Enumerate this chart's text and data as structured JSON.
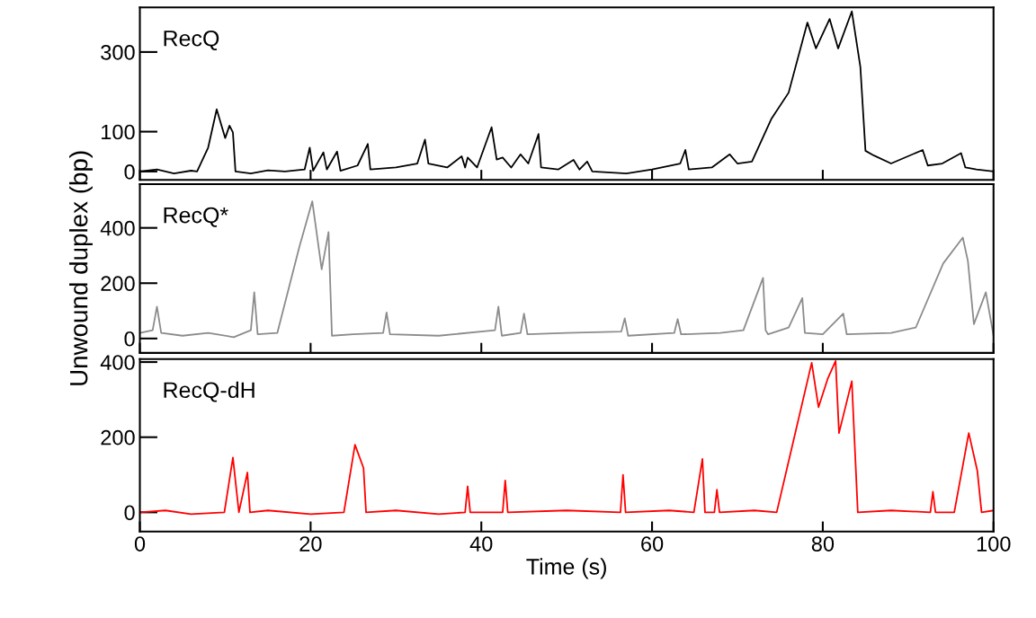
{
  "chart_data": [
    {
      "type": "line",
      "ylabel": null,
      "xlim": [
        0,
        100
      ],
      "xticks": [
        0,
        20,
        40,
        60,
        80,
        100
      ],
      "ylim": [
        -21,
        412
      ],
      "yticks": [
        0,
        100,
        300
      ],
      "tick_labels": "y",
      "legend": "top left",
      "series": [
        {
          "name": "RecQ",
          "color": "#000000",
          "x": [
            0,
            2,
            4,
            6,
            6.7,
            8,
            9.0,
            9.5,
            10.0,
            10.5,
            10.9,
            11.2,
            13,
            15,
            17,
            19.3,
            19.9,
            20.3,
            21.5,
            21.9,
            23.1,
            23.5,
            25.5,
            26.7,
            27.0,
            30,
            32.5,
            33.4,
            33.8,
            36,
            37.7,
            38.1,
            38.4,
            39.5,
            41.2,
            41.8,
            42.5,
            43.5,
            44.6,
            45.5,
            46.7,
            47.0,
            49,
            50.8,
            51.5,
            52.4,
            53,
            57,
            60,
            63.3,
            63.9,
            64.3,
            67,
            69.1,
            70,
            71.7,
            74,
            76,
            78.2,
            79.2,
            80.8,
            81.8,
            83.4,
            84.4,
            85,
            86,
            88,
            91.7,
            92.3,
            94,
            96.2,
            96.7,
            98,
            100
          ],
          "values": [
            0,
            5,
            -5,
            2,
            0,
            60,
            156,
            120,
            84,
            115,
            98,
            0,
            -5,
            3,
            0,
            5,
            60,
            2,
            48,
            5,
            50,
            2,
            15,
            69,
            5,
            10,
            20,
            80,
            20,
            10,
            38,
            10,
            35,
            10,
            111,
            30,
            35,
            10,
            43,
            20,
            94,
            10,
            5,
            29,
            5,
            25,
            0,
            -5,
            5,
            20,
            54,
            5,
            10,
            43,
            20,
            25,
            133,
            198,
            374,
            309,
            383,
            309,
            402,
            263,
            52,
            40,
            20,
            54,
            15,
            20,
            46,
            10,
            5,
            0
          ]
        }
      ]
    },
    {
      "type": "line",
      "ylabel": "Unwound duplex (bp)",
      "xlim": [
        0,
        100
      ],
      "xticks": [
        0,
        20,
        40,
        60,
        80,
        100
      ],
      "ylim": [
        -52,
        558
      ],
      "yticks": [
        0,
        200,
        400
      ],
      "tick_labels": "y",
      "legend": "top left",
      "series": [
        {
          "name": "RecQ*",
          "color": "#8c8c8c",
          "x": [
            0,
            1.5,
            2,
            2.5,
            5,
            8,
            11,
            13.0,
            13.4,
            13.8,
            16.1,
            18.7,
            20.2,
            21.3,
            22.1,
            22.5,
            25,
            28.5,
            28.9,
            29.3,
            35,
            41.6,
            42,
            42.4,
            44.6,
            45,
            45.4,
            50,
            56.4,
            56.8,
            57.2,
            62.6,
            63,
            63.4,
            68,
            70.7,
            73.0,
            73.3,
            73.6,
            76,
            77.6,
            77.9,
            80,
            82.4,
            82.8,
            88,
            90.9,
            94.1,
            96.4,
            97,
            97.7,
            99.1,
            100
          ],
          "values": [
            20,
            30,
            115,
            20,
            10,
            20,
            5,
            30,
            167,
            15,
            20,
            333,
            496,
            250,
            385,
            10,
            15,
            20,
            94,
            15,
            10,
            30,
            115,
            10,
            20,
            90,
            15,
            20,
            25,
            73,
            10,
            20,
            70,
            15,
            20,
            30,
            219,
            30,
            15,
            40,
            146,
            20,
            15,
            90,
            15,
            20,
            40,
            271,
            365,
            280,
            52,
            167,
            10
          ]
        }
      ]
    },
    {
      "type": "line",
      "xlabel": "Time (s)",
      "xlim": [
        0,
        100
      ],
      "xticks": [
        0,
        20,
        40,
        60,
        80,
        100
      ],
      "ylim": [
        -51,
        408
      ],
      "yticks": [
        0,
        200,
        400
      ],
      "legend": "top left",
      "series": [
        {
          "name": "RecQ-dH",
          "color": "#ff0000",
          "x": [
            0,
            3,
            6,
            9.9,
            10.9,
            11.6,
            12.6,
            12.9,
            15,
            20,
            23.9,
            25.2,
            26.2,
            26.5,
            30,
            35,
            38.1,
            38.4,
            38.7,
            42.5,
            42.8,
            43.1,
            50,
            56.3,
            56.6,
            56.9,
            62,
            64.9,
            65.9,
            66.2,
            67.3,
            67.6,
            67.9,
            72,
            74.6,
            78.7,
            79.5,
            80.6,
            81.5,
            81.9,
            83.4,
            84.1,
            88,
            92.6,
            92.9,
            93.2,
            95.4,
            97.1,
            98.1,
            98.6,
            100
          ],
          "values": [
            0,
            5,
            -5,
            0,
            146,
            0,
            106,
            0,
            5,
            -5,
            0,
            180,
            118,
            0,
            5,
            -5,
            0,
            69,
            0,
            0,
            85,
            0,
            5,
            0,
            100,
            0,
            5,
            0,
            142,
            0,
            0,
            60,
            0,
            5,
            0,
            398,
            280,
            357,
            403,
            211,
            349,
            0,
            5,
            0,
            55,
            0,
            0,
            211,
            111,
            0,
            5
          ]
        }
      ]
    }
  ]
}
